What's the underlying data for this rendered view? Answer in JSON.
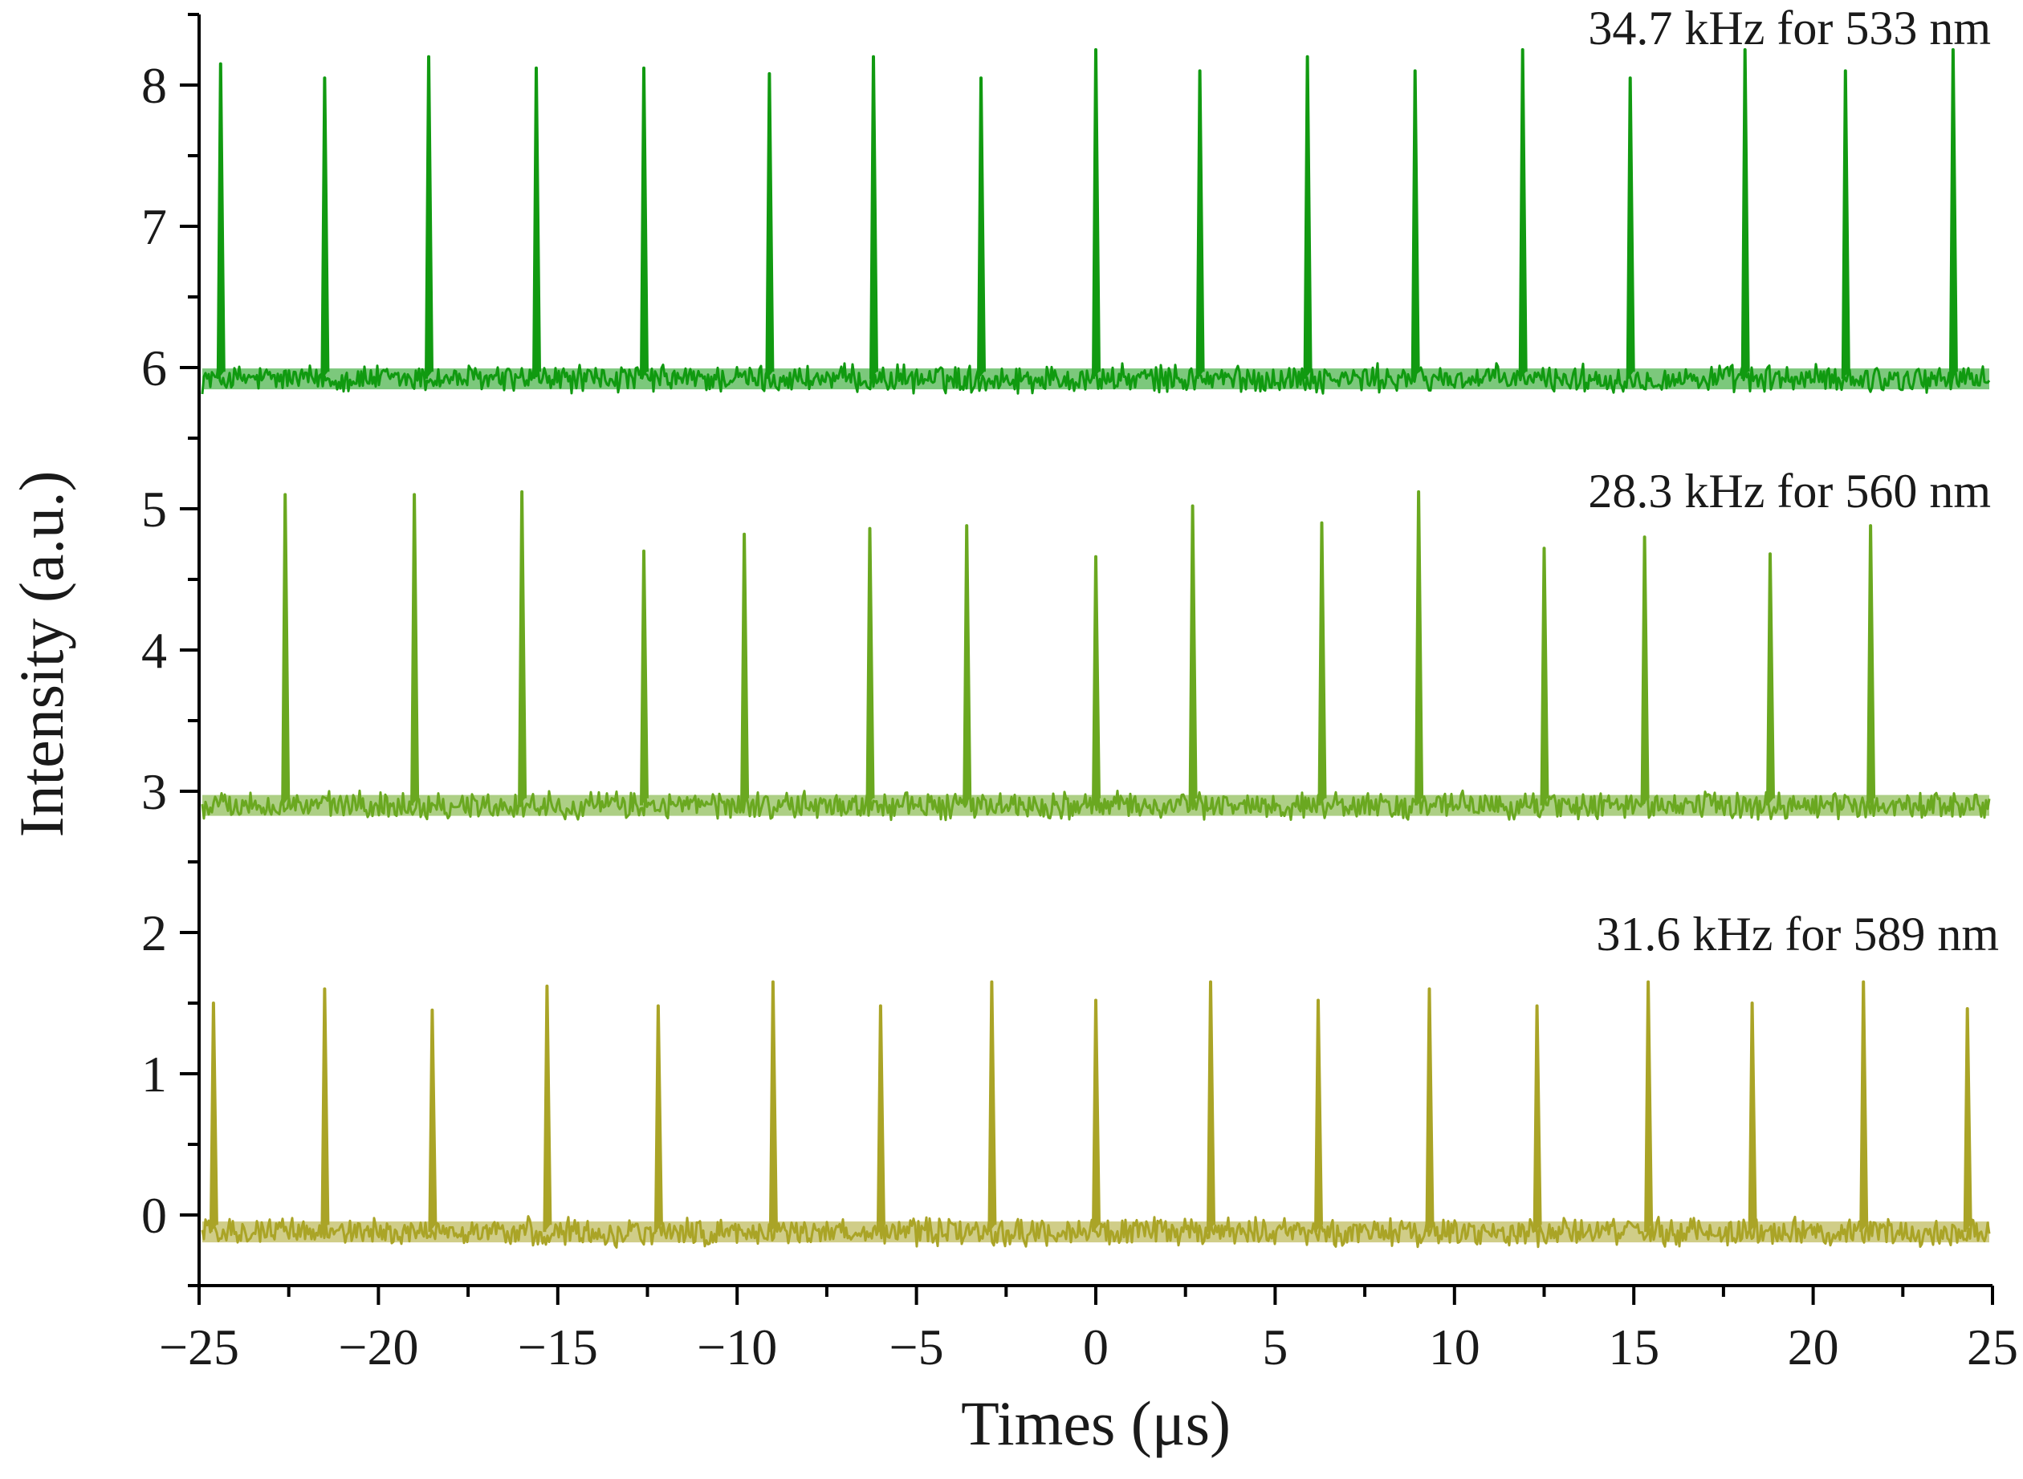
{
  "chart_data": {
    "type": "line",
    "title": "",
    "xlabel": "Times (μs)",
    "ylabel": "Intensity (a.u.)",
    "xlim": [
      -25,
      25
    ],
    "ylim": [
      -0.5,
      8.5
    ],
    "x_ticks": [
      -25,
      -20,
      -15,
      -10,
      -5,
      0,
      5,
      10,
      15,
      20,
      25
    ],
    "x_tick_labels": [
      "−25",
      "−20",
      "−15",
      "−10",
      "−5",
      "0",
      "5",
      "10",
      "15",
      "20",
      "25"
    ],
    "y_ticks": [
      0,
      1,
      2,
      3,
      4,
      5,
      6,
      7,
      8
    ],
    "y_tick_labels": [
      "0",
      "1",
      "2",
      "3",
      "4",
      "5",
      "6",
      "7",
      "8"
    ],
    "grid": false,
    "series": [
      {
        "name": "533 nm",
        "label": "34.7 kHz for 533 nm",
        "color": "#119a11",
        "baseline": 5.92,
        "noise": 0.08,
        "pulses": [
          {
            "t": -24.4,
            "peak": 8.15
          },
          {
            "t": -21.5,
            "peak": 8.05
          },
          {
            "t": -18.6,
            "peak": 8.2
          },
          {
            "t": -15.6,
            "peak": 8.12
          },
          {
            "t": -12.6,
            "peak": 8.12
          },
          {
            "t": -9.1,
            "peak": 8.08
          },
          {
            "t": -6.2,
            "peak": 8.2
          },
          {
            "t": -3.2,
            "peak": 8.05
          },
          {
            "t": 0.0,
            "peak": 8.25
          },
          {
            "t": 2.9,
            "peak": 8.1
          },
          {
            "t": 5.9,
            "peak": 8.2
          },
          {
            "t": 8.9,
            "peak": 8.1
          },
          {
            "t": 11.9,
            "peak": 8.25
          },
          {
            "t": 14.9,
            "peak": 8.05
          },
          {
            "t": 18.1,
            "peak": 8.25
          },
          {
            "t": 20.9,
            "peak": 8.1
          },
          {
            "t": 23.9,
            "peak": 8.25
          }
        ]
      },
      {
        "name": "560 nm",
        "label": "28.3 kHz for 560 nm",
        "color": "#6aa820",
        "baseline": 2.9,
        "noise": 0.08,
        "pulses": [
          {
            "t": -22.6,
            "peak": 5.1
          },
          {
            "t": -19.0,
            "peak": 5.1
          },
          {
            "t": -16.0,
            "peak": 5.12
          },
          {
            "t": -12.6,
            "peak": 4.7
          },
          {
            "t": -9.8,
            "peak": 4.82
          },
          {
            "t": -6.3,
            "peak": 4.86
          },
          {
            "t": -3.6,
            "peak": 4.88
          },
          {
            "t": 0.0,
            "peak": 4.66
          },
          {
            "t": 2.7,
            "peak": 5.02
          },
          {
            "t": 6.3,
            "peak": 4.9
          },
          {
            "t": 9.0,
            "peak": 5.12
          },
          {
            "t": 12.5,
            "peak": 4.72
          },
          {
            "t": 15.3,
            "peak": 4.8
          },
          {
            "t": 18.8,
            "peak": 4.68
          },
          {
            "t": 21.6,
            "peak": 4.88
          }
        ]
      },
      {
        "name": "589 nm",
        "label": "31.6 kHz for 589 nm",
        "color": "#aaa427",
        "baseline": -0.12,
        "noise": 0.08,
        "pulses": [
          {
            "t": -24.6,
            "peak": 1.5
          },
          {
            "t": -21.5,
            "peak": 1.6
          },
          {
            "t": -18.5,
            "peak": 1.45
          },
          {
            "t": -15.3,
            "peak": 1.62
          },
          {
            "t": -12.2,
            "peak": 1.48
          },
          {
            "t": -9.0,
            "peak": 1.65
          },
          {
            "t": -6.0,
            "peak": 1.48
          },
          {
            "t": -2.9,
            "peak": 1.65
          },
          {
            "t": 0.0,
            "peak": 1.52
          },
          {
            "t": 3.2,
            "peak": 1.65
          },
          {
            "t": 6.2,
            "peak": 1.52
          },
          {
            "t": 9.3,
            "peak": 1.6
          },
          {
            "t": 12.3,
            "peak": 1.48
          },
          {
            "t": 15.4,
            "peak": 1.65
          },
          {
            "t": 18.3,
            "peak": 1.5
          },
          {
            "t": 21.4,
            "peak": 1.65
          },
          {
            "t": 24.3,
            "peak": 1.46
          }
        ]
      }
    ]
  }
}
